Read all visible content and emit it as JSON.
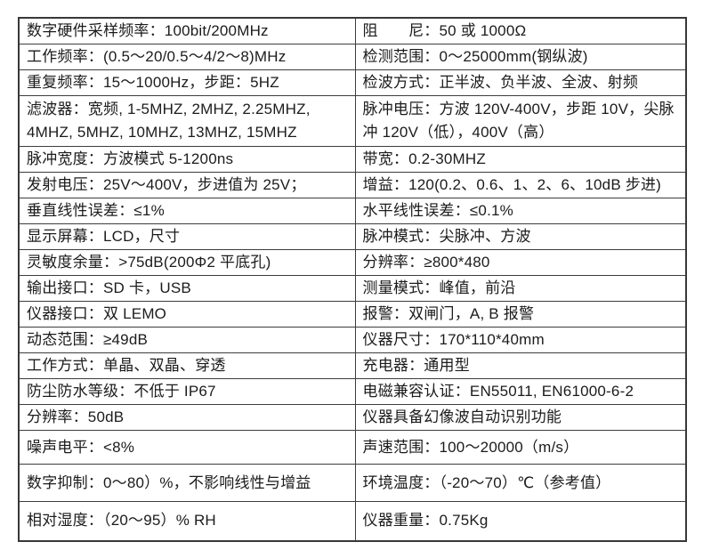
{
  "page": {
    "background_color": "#ffffff",
    "border_color": "#3d3d3d",
    "text_color": "#1b1b1b"
  },
  "table": {
    "type": "spec-table",
    "columns": 2,
    "rows": [
      {
        "left": "数字硬件采样频率：100bit/200MHz",
        "right": "阻　　尼：50 或 1000Ω"
      },
      {
        "left": "工作频率：(0.5～20/0.5～4/2～8)MHz",
        "right": "检测范围：0～25000mm(钢纵波)"
      },
      {
        "left": "重复频率：15～1000Hz，步距：5HZ",
        "right": "检波方式：正半波、负半波、全波、射频"
      },
      {
        "left": "滤波器：宽频, 1-5MHZ, 2MHZ, 2.25MHZ, 4MHZ, 5MHZ, 10MHZ, 13MHZ, 15MHZ",
        "right": "脉冲电压：方波 120V-400V，步距 10V，尖脉冲 120V（低），400V（高）"
      },
      {
        "left": "脉冲宽度：方波模式 5-1200ns",
        "right": "带宽：0.2-30MHZ"
      },
      {
        "left": "发射电压：25V～400V，步进值为 25V；",
        "right": "增益：120(0.2、0.6、1、2、6、10dB 步进)"
      },
      {
        "left": "垂直线性误差：≤1%",
        "right": "水平线性误差：≤0.1%"
      },
      {
        "left": "显示屏幕：LCD，尺寸",
        "right": "脉冲模式：尖脉冲、方波"
      },
      {
        "left": "灵敏度余量：>75dB(200Φ2 平底孔)",
        "right": "分辨率：≥800*480"
      },
      {
        "left": "输出接口：SD 卡，USB",
        "right": "测量模式：峰值，前沿"
      },
      {
        "left": "仪器接口：双 LEMO",
        "right": "报警：双闸门，A, B 报警"
      },
      {
        "left": "动态范围：≥49dB",
        "right": "仪器尺寸：170*110*40mm"
      },
      {
        "left": "工作方式：单晶、双晶、穿透",
        "right": "充电器：通用型"
      },
      {
        "left": "防尘防水等级：不低于 IP67",
        "right": "电磁兼容认证：EN55011, EN61000-6-2"
      },
      {
        "left": "分辨率：50dB",
        "right": "仪器具备幻像波自动识别功能"
      },
      {
        "left": "噪声电平：<8%",
        "right": "声速范围：100～20000（m/s）"
      },
      {
        "left": "数字抑制：0～80）%，不影响线性与增益",
        "right": "环境温度：（-20～70）℃（参考值）"
      },
      {
        "left": "相对湿度：（20～95）% RH",
        "right": "仪器重量：0.75Kg"
      }
    ]
  }
}
